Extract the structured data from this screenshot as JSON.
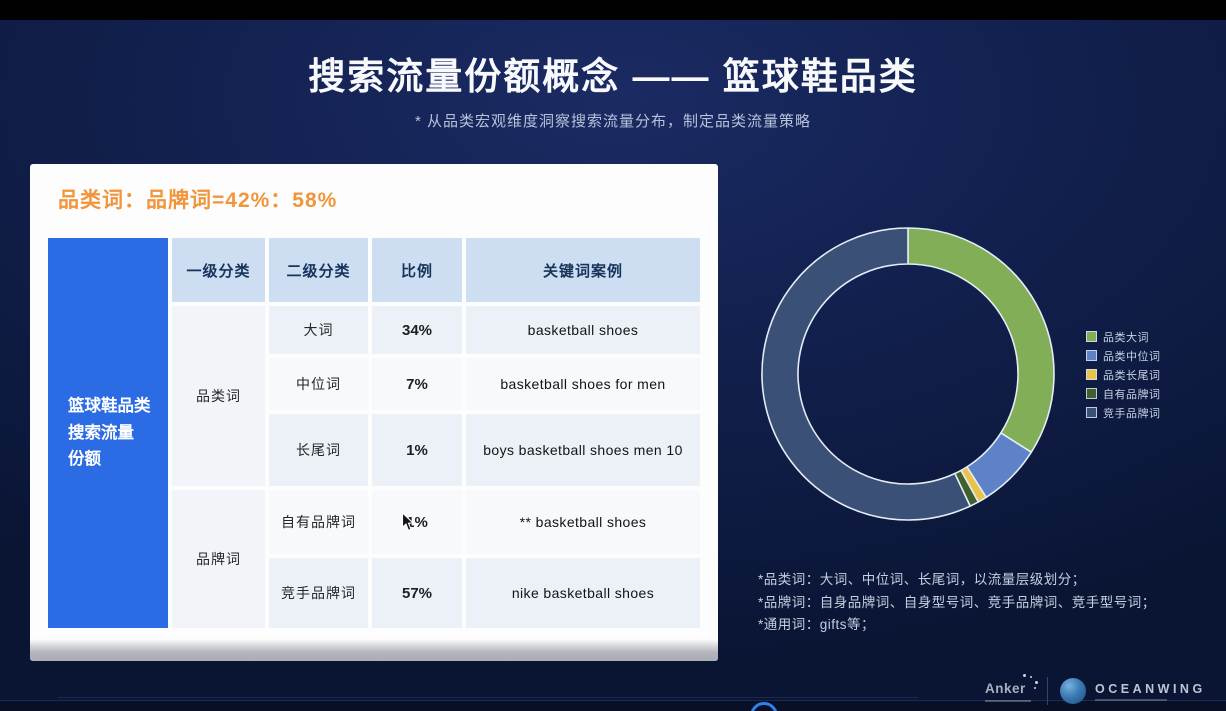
{
  "slide": {
    "title": "搜索流量份额概念 —— 篮球鞋品类",
    "subtitle": "* 从品类宏观维度洞察搜索流量分布，制定品类流量策略"
  },
  "card": {
    "headline": "品类词：品牌词=42%：58%",
    "row_axis_label": "篮球鞋品类\n搜索流量\n份额",
    "table": {
      "columns": [
        "一级分类",
        "二级分类",
        "比例",
        "关键词案例"
      ],
      "groups": [
        {
          "label": "品类词",
          "rows": [
            {
              "sub": "大词",
              "pct": "34%",
              "example": "basketball shoes"
            },
            {
              "sub": "中位词",
              "pct": "7%",
              "example": "basketball shoes for men"
            },
            {
              "sub": "长尾词",
              "pct": "1%",
              "example": "boys basketball shoes men 10"
            }
          ]
        },
        {
          "label": "品牌词",
          "rows": [
            {
              "sub": "自有品牌词",
              "pct": "1%",
              "example": "** basketball shoes"
            },
            {
              "sub": "竞手品牌词",
              "pct": "57%",
              "example": "nike basketball shoes"
            }
          ]
        }
      ]
    }
  },
  "chart_data": {
    "type": "pie",
    "donut": true,
    "start_angle_deg": 0,
    "direction": "clockwise",
    "legend_position": "right",
    "title": "",
    "slices": [
      {
        "label": "品类大词",
        "value": 34,
        "color": "#82ae57"
      },
      {
        "label": "品类中位词",
        "value": 7,
        "color": "#5d82c8"
      },
      {
        "label": "品类长尾词",
        "value": 1,
        "color": "#e9c44c"
      },
      {
        "label": "自有品牌词",
        "value": 1,
        "color": "#41602d"
      },
      {
        "label": "竞手品牌词",
        "value": 57,
        "color": "#3b5077"
      }
    ]
  },
  "notes": [
    "*品类词：大词、中位词、长尾词，以流量层级划分；",
    "*品牌词：自身品牌词、自身型号词、竞手品牌词、竞手型号词；",
    "*通用词：gifts等；"
  ],
  "footer": {
    "anker": "Anker",
    "oceanwing": "OCEANWING"
  },
  "colors": {
    "accent_orange": "#f2953a",
    "table_header_bg": "#cddef2",
    "row_header_bg": "#2b6be3",
    "slide_bg": "#12204e"
  }
}
